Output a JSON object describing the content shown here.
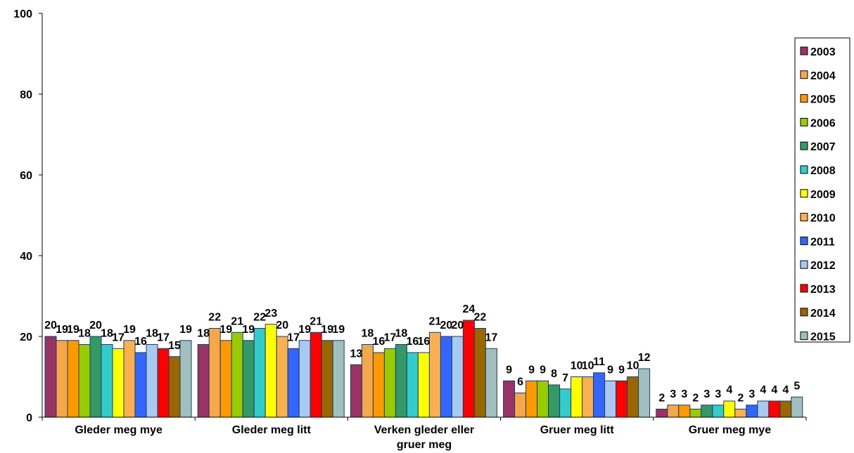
{
  "chart_data": {
    "type": "bar",
    "title": "",
    "xlabel": "",
    "ylabel": "",
    "ylim": [
      0,
      100
    ],
    "yticks": [
      "0",
      "20",
      "40",
      "60",
      "80",
      "100"
    ],
    "grid": false,
    "legend_position": "right",
    "categories": [
      [
        "Gleder meg mye"
      ],
      [
        "Gleder meg litt"
      ],
      [
        "Verken gleder eller",
        "gruer meg"
      ],
      [
        "Gruer meg litt"
      ],
      [
        "Gruer meg mye"
      ]
    ],
    "series": [
      {
        "name": "2003",
        "color": "#993366",
        "values": [
          20,
          18,
          13,
          9,
          2
        ]
      },
      {
        "name": "2004",
        "color": "#F4A84A",
        "values": [
          19,
          22,
          18,
          6,
          3
        ]
      },
      {
        "name": "2005",
        "color": "#FF9900",
        "values": [
          19,
          19,
          16,
          9,
          3
        ]
      },
      {
        "name": "2006",
        "color": "#99CC00",
        "values": [
          18,
          21,
          17,
          9,
          2
        ]
      },
      {
        "name": "2007",
        "color": "#339966",
        "values": [
          20,
          19,
          18,
          8,
          3
        ]
      },
      {
        "name": "2008",
        "color": "#33CCCC",
        "values": [
          18,
          22,
          16,
          7,
          3
        ]
      },
      {
        "name": "2009",
        "color": "#FFFF00",
        "values": [
          17,
          23,
          16,
          10,
          4
        ]
      },
      {
        "name": "2010",
        "color": "#F9B04F",
        "values": [
          19,
          20,
          21,
          10,
          2
        ]
      },
      {
        "name": "2011",
        "color": "#3366FF",
        "values": [
          16,
          17,
          20,
          11,
          3
        ]
      },
      {
        "name": "2012",
        "color": "#A6CAF0",
        "values": [
          18,
          19,
          20,
          9,
          4
        ]
      },
      {
        "name": "2013",
        "color": "#FF0000",
        "values": [
          17,
          21,
          24,
          9,
          4
        ]
      },
      {
        "name": "2014",
        "color": "#996600",
        "values": [
          15,
          19,
          22,
          10,
          4
        ]
      },
      {
        "name": "2015",
        "color": "#A0C0C0",
        "values": [
          19,
          19,
          17,
          12,
          5
        ]
      }
    ]
  }
}
